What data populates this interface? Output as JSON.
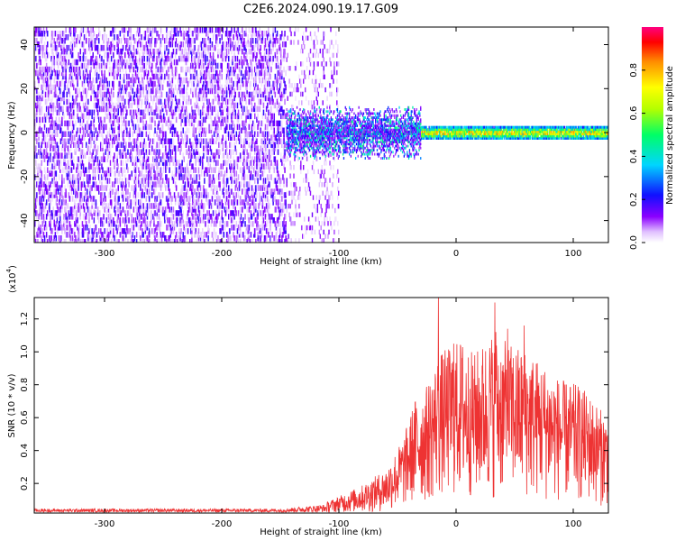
{
  "title": "C2E6.2024.090.19.17.G09",
  "chart_data": [
    {
      "type": "heatmap",
      "xlabel": "Height of straight line (km)",
      "ylabel": "Frequency (Hz)",
      "xlim": [
        -360,
        130
      ],
      "ylim": [
        -50,
        48
      ],
      "xticks": [
        -300,
        -200,
        -100,
        0,
        100
      ],
      "yticks": [
        -40,
        -20,
        0,
        20,
        40
      ],
      "colorbar": {
        "label": "Normalized spectral amplitude",
        "range": [
          0.0,
          1.0
        ],
        "ticks": [
          0.0,
          0.2,
          0.4,
          0.6,
          0.8
        ],
        "colors": [
          "#ffffff",
          "#d9b3ff",
          "#8b00ff",
          "#0000ff",
          "#00d5ff",
          "#00ff66",
          "#b4ff00",
          "#ffff00",
          "#ff8c00",
          "#ff0000",
          "#ff0080"
        ]
      },
      "regions": [
        {
          "x": [
            -360,
            -145
          ],
          "freq": [
            -50,
            48
          ],
          "amplitude": [
            0.0,
            0.2
          ]
        },
        {
          "x": [
            -145,
            -100
          ],
          "freq": [
            -50,
            48
          ],
          "amplitude": [
            0.0,
            0.15
          ]
        },
        {
          "x": [
            -145,
            -30
          ],
          "freq": [
            -12,
            12
          ],
          "amplitude": [
            0.1,
            0.5
          ]
        },
        {
          "x": [
            -30,
            130
          ],
          "freq": [
            -3,
            3
          ],
          "amplitude": [
            0.4,
            0.95
          ]
        }
      ]
    },
    {
      "type": "line",
      "xlabel": "Height of straight line (km)",
      "ylabel": "SNR (10 * v/v)",
      "y_multiplier": "(x10",
      "y_multiplier_exp": "4",
      "y_multiplier_close": ")",
      "xlim": [
        -360,
        130
      ],
      "ylim": [
        0.02,
        1.33
      ],
      "xticks": [
        -300,
        -200,
        -100,
        0,
        100
      ],
      "yticks": [
        0.2,
        0.4,
        0.6,
        0.8,
        1.0,
        1.2
      ],
      "color": "#ee3333",
      "envelope": [
        {
          "x": -360,
          "y": 0.04
        },
        {
          "x": -300,
          "y": 0.04
        },
        {
          "x": -200,
          "y": 0.04
        },
        {
          "x": -150,
          "y": 0.04
        },
        {
          "x": -130,
          "y": 0.05
        },
        {
          "x": -110,
          "y": 0.06
        },
        {
          "x": -100,
          "y": 0.08
        },
        {
          "x": -80,
          "y": 0.12
        },
        {
          "x": -60,
          "y": 0.18
        },
        {
          "x": -45,
          "y": 0.3
        },
        {
          "x": -35,
          "y": 0.45
        },
        {
          "x": -25,
          "y": 0.5
        },
        {
          "x": -15,
          "y": 0.62
        },
        {
          "x": -5,
          "y": 0.65
        },
        {
          "x": 5,
          "y": 0.68
        },
        {
          "x": 15,
          "y": 0.62
        },
        {
          "x": 30,
          "y": 0.7
        },
        {
          "x": 45,
          "y": 0.66
        },
        {
          "x": 60,
          "y": 0.64
        },
        {
          "x": 75,
          "y": 0.58
        },
        {
          "x": 90,
          "y": 0.52
        },
        {
          "x": 105,
          "y": 0.5
        },
        {
          "x": 115,
          "y": 0.46
        },
        {
          "x": 125,
          "y": 0.4
        },
        {
          "x": 130,
          "y": 0.38
        }
      ],
      "peaks": [
        {
          "x": -15,
          "y": 1.33
        },
        {
          "x": 33,
          "y": 1.3
        },
        {
          "x": 58,
          "y": 1.16
        },
        {
          "x": 34,
          "y": 1.12
        },
        {
          "x": -2,
          "y": 1.05
        },
        {
          "x": 44,
          "y": 1.14
        }
      ]
    }
  ]
}
